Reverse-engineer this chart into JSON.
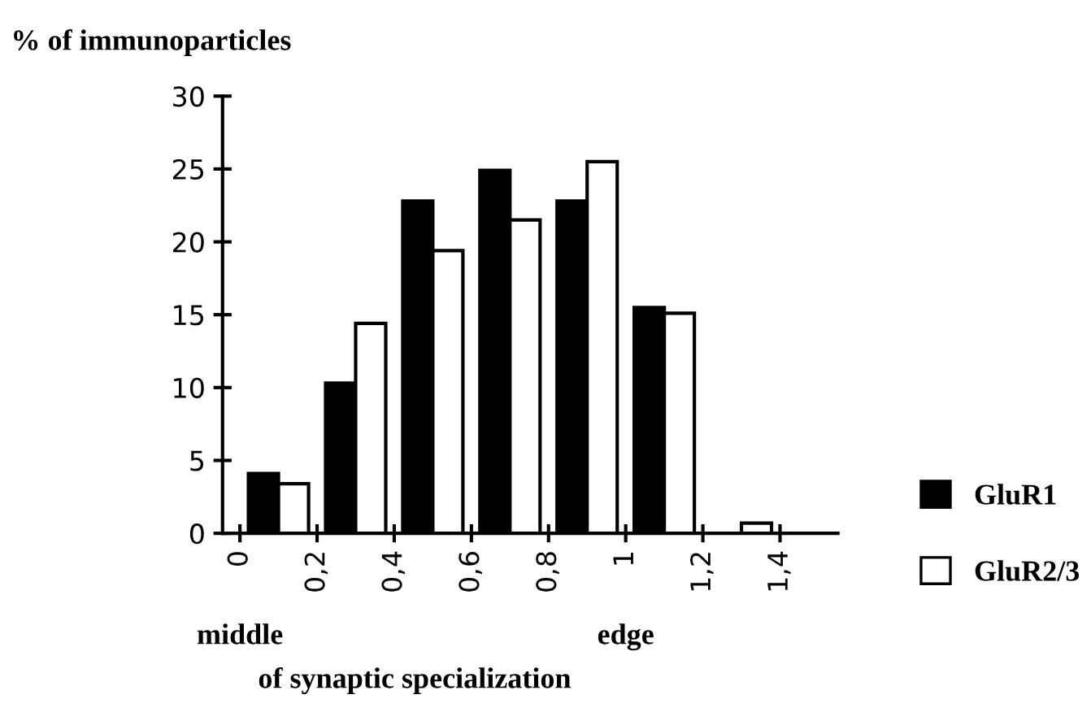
{
  "chart_data": {
    "type": "bar",
    "ylabel": "% of immunoparticles",
    "xlabel": "of synaptic specialization",
    "annotations": [
      "middle",
      "edge"
    ],
    "x": [
      0.1,
      0.3,
      0.5,
      0.7,
      0.9,
      1.1,
      1.3
    ],
    "series": [
      {
        "name": "GluR1",
        "color": "#000000",
        "values": [
          4.1,
          10.3,
          22.8,
          24.9,
          22.8,
          15.5,
          0
        ]
      },
      {
        "name": "GluR2/3",
        "color": "#ffffff",
        "values": [
          3.4,
          14.4,
          19.4,
          21.5,
          25.5,
          15.1,
          0.7
        ]
      }
    ],
    "xlim": [
      -0.045,
      1.55
    ],
    "xticks": [
      0,
      {
        "value": 0.2,
        "label": "0,2"
      },
      {
        "value": 0.4,
        "label": "0,4"
      },
      {
        "value": 0.6,
        "label": "0,6"
      },
      {
        "value": 0.8,
        "label": "0,8"
      },
      1,
      {
        "value": 1.2,
        "label": "1,2"
      },
      {
        "value": 1.4,
        "label": "1,4"
      }
    ],
    "ylim": [
      0,
      30
    ],
    "yticks": [
      0,
      5,
      10,
      15,
      20,
      25,
      30
    ],
    "grid": false,
    "legend": "right"
  }
}
